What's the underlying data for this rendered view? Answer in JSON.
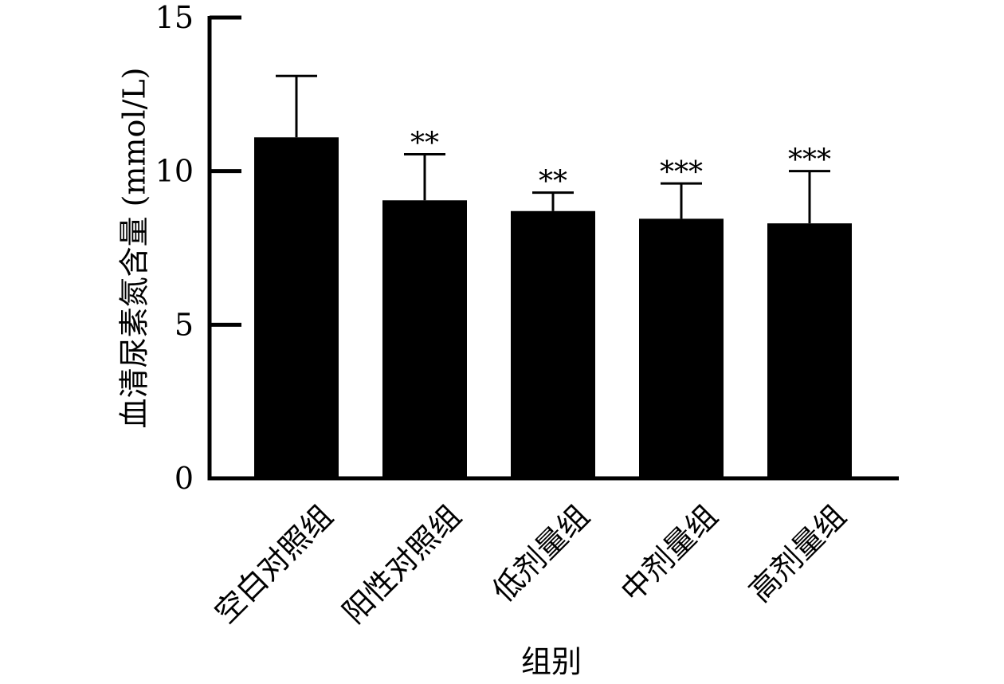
{
  "chart_data": {
    "type": "bar",
    "categories": [
      "空白对照组",
      "阳性对照组",
      "低剂量组",
      "中剂量组",
      "高剂量组"
    ],
    "values": [
      11.1,
      9.05,
      8.7,
      8.45,
      8.3
    ],
    "error": [
      2.0,
      1.5,
      0.6,
      1.15,
      1.7
    ],
    "significance": [
      "",
      "**",
      "**",
      "***",
      "***"
    ],
    "xlabel": "组别",
    "ylabel": "血清尿素氮含量 (mmol/L)",
    "ylim": [
      0,
      15
    ],
    "yticks": [
      0,
      5,
      10,
      15
    ],
    "ytick_labels": [
      "0",
      "5",
      "10",
      "15"
    ],
    "bar_color": "#000000",
    "grid": false,
    "legend": "none"
  }
}
